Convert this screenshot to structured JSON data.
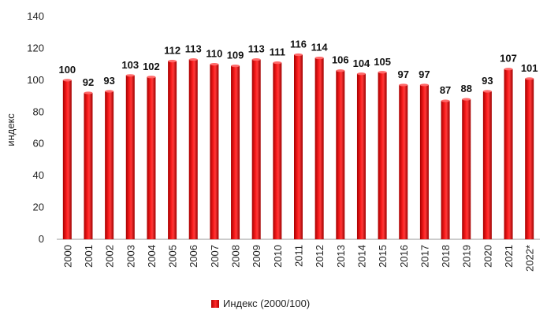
{
  "chart_data": {
    "type": "bar",
    "categories": [
      "2000",
      "2001",
      "2002",
      "2003",
      "2004",
      "2005",
      "2006",
      "2007",
      "2008",
      "2009",
      "2010",
      "2011",
      "2012",
      "2013",
      "2014",
      "2015",
      "2016",
      "2017",
      "2018",
      "2019",
      "2020",
      "2021",
      "2022*"
    ],
    "series": [
      {
        "name": "Индекс (2000/100)",
        "values": [
          100,
          92,
          93,
          103,
          102,
          112,
          113,
          110,
          109,
          113,
          111,
          116,
          114,
          106,
          104,
          105,
          97,
          97,
          87,
          88,
          93,
          107,
          101
        ]
      }
    ],
    "ylabel": "индекс",
    "xlabel": "",
    "ylim": [
      0,
      140
    ],
    "yticks": [
      0,
      20,
      40,
      60,
      80,
      100,
      120,
      140
    ],
    "grid": false,
    "legend_position": "bottom",
    "bar_color": "#e00000"
  }
}
